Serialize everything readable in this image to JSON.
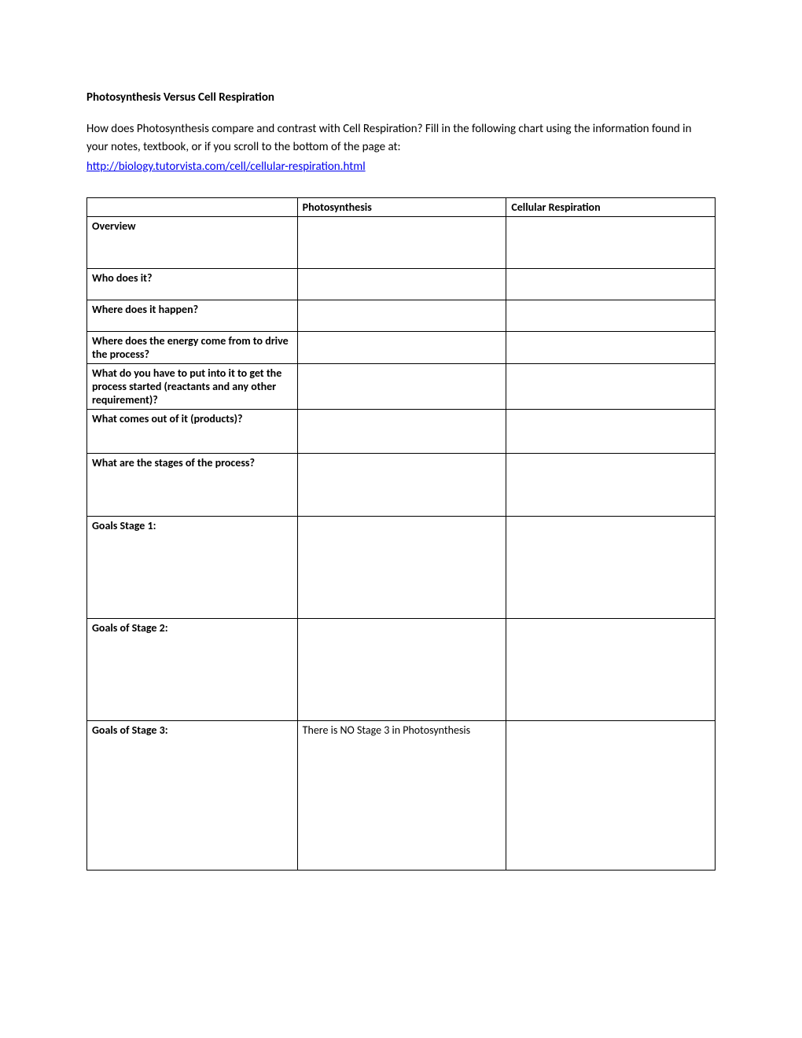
{
  "title": "Photosynthesis Versus Cell Respiration",
  "intro": "How does Photosynthesis compare and contrast with Cell Respiration? Fill in the following chart using the information found in your notes, textbook, or if you scroll to the bottom of the page at:",
  "link": "http://biology.tutorvista.com/cell/cellular-respiration.html",
  "table": {
    "columns": {
      "blank": "",
      "col1": "Photosynthesis",
      "col2": "Cellular Respiration"
    },
    "rows": {
      "overview": {
        "label": "Overview",
        "c1": "",
        "c2": ""
      },
      "who": {
        "label": "Who does it?",
        "c1": "",
        "c2": ""
      },
      "where": {
        "label": "Where does it happen?",
        "c1": "",
        "c2": ""
      },
      "energy": {
        "label": "Where does the energy come from to drive the process?",
        "c1": "",
        "c2": ""
      },
      "input": {
        "label": "What do you have to put into it to get the process started (reactants and any other requirement)?",
        "c1": "",
        "c2": ""
      },
      "output": {
        "label": "What comes out of it (products)?",
        "c1": "",
        "c2": ""
      },
      "stages": {
        "label": "What are the stages of the process?",
        "c1": "",
        "c2": ""
      },
      "goal1": {
        "label": "Goals Stage 1:",
        "c1": "",
        "c2": ""
      },
      "goal2": {
        "label": "Goals of Stage 2:",
        "c1": "",
        "c2": ""
      },
      "goal3": {
        "label": "Goals of Stage 3:",
        "c1": "There is NO Stage 3 in Photosynthesis",
        "c2": ""
      }
    }
  },
  "styling": {
    "font_family": "Calibri",
    "title_fontsize": 15,
    "body_fontsize": 15,
    "table_fontsize": 14,
    "border_color": "#000000",
    "background_color": "#ffffff",
    "link_color": "#0000ee",
    "text_color": "#000000"
  }
}
